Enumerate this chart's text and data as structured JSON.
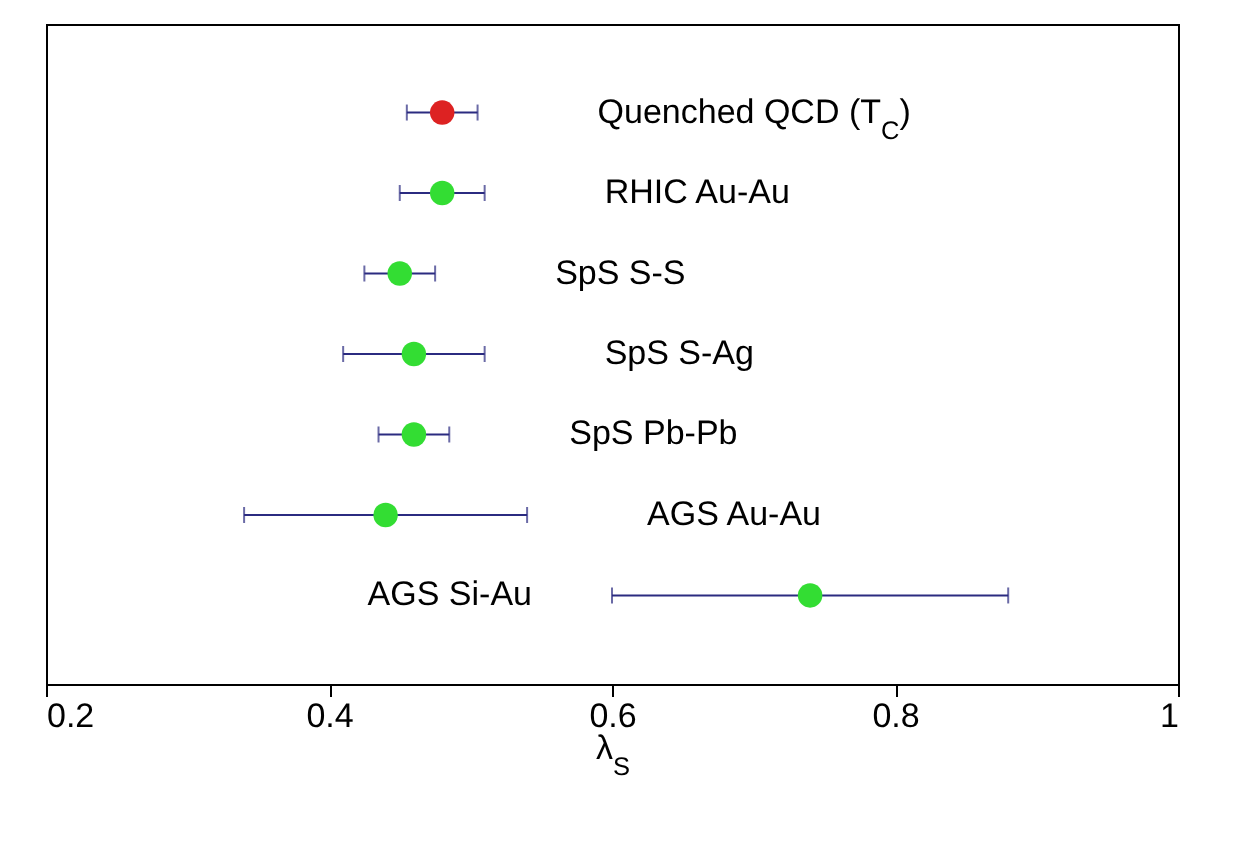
{
  "chart_data": {
    "type": "scatter",
    "orientation": "horizontal",
    "categories": [
      "Quenched QCD (T$_{C}$)",
      "RHIC Au-Au",
      "SpS S-S",
      "SpS S-Ag",
      "SpS Pb-Pb",
      "AGS Au-Au",
      "AGS Si-Au"
    ],
    "values": [
      0.48,
      0.48,
      0.45,
      0.46,
      0.46,
      0.44,
      0.74
    ],
    "errors": [
      0.025,
      0.03,
      0.025,
      0.05,
      0.025,
      0.1,
      0.14
    ],
    "colors": [
      "#dd2222",
      "#33dd33",
      "#33dd33",
      "#33dd33",
      "#33dd33",
      "#33dd33",
      "#33dd33"
    ],
    "xlabel": "λ$_{S}$",
    "xlim": [
      0.2,
      1
    ],
    "xticks": [
      0.2,
      0.4,
      0.6,
      0.8,
      1
    ],
    "tick_labels": "x",
    "marker": "circle",
    "grid": false,
    "legend": false
  }
}
